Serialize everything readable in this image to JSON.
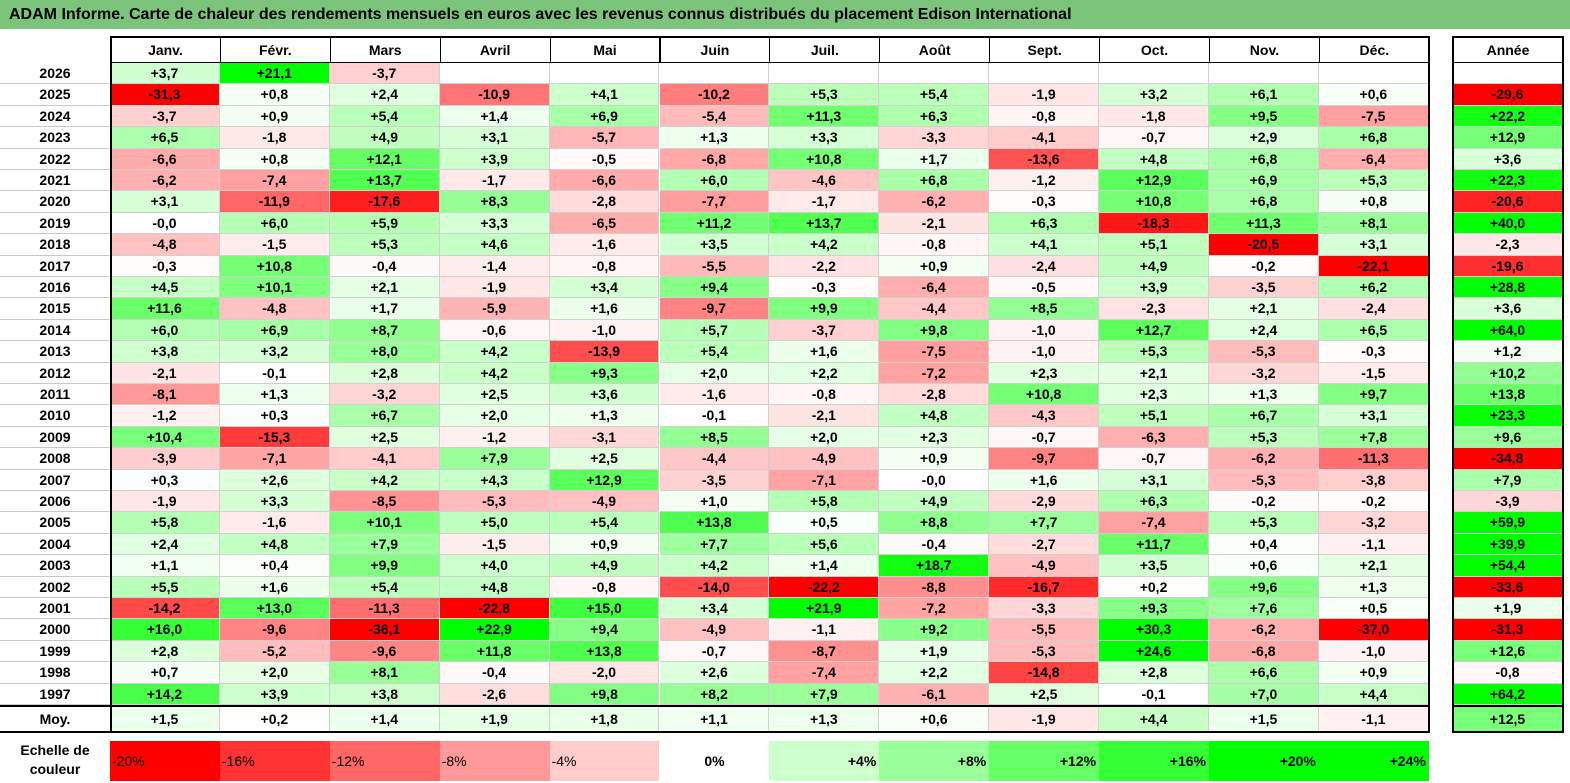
{
  "title": "ADAM Informe. Carte de chaleur des rendements mensuels en euros avec les revenus connus distribués du placement Edison International",
  "chart_data": {
    "type": "heatmap",
    "title": "ADAM Informe. Carte de chaleur des rendements mensuels en euros avec les revenus connus distribués du placement Edison International",
    "months": [
      "Janv.",
      "Févr.",
      "Mars",
      "Avril",
      "Mai",
      "Juin",
      "Juil.",
      "Août",
      "Sept.",
      "Oct.",
      "Nov.",
      "Déc."
    ],
    "year_header": "Année",
    "rows": [
      {
        "year": "2026",
        "values": [
          "+3,7",
          "+21,1",
          "-3,7",
          "",
          "",
          "",
          "",
          "",
          "",
          "",
          "",
          ""
        ],
        "annual": ""
      },
      {
        "year": "2025",
        "values": [
          "-31,3",
          "+0,8",
          "+2,4",
          "-10,9",
          "+4,1",
          "-10,2",
          "+5,3",
          "+5,4",
          "-1,9",
          "+3,2",
          "+6,1",
          "+0,6"
        ],
        "annual": "-29,6"
      },
      {
        "year": "2024",
        "values": [
          "-3,7",
          "+0,9",
          "+5,4",
          "+1,4",
          "+6,9",
          "-5,4",
          "+11,3",
          "+6,3",
          "-0,8",
          "-1,8",
          "+9,5",
          "-7,5"
        ],
        "annual": "+22,2"
      },
      {
        "year": "2023",
        "values": [
          "+6,5",
          "-1,8",
          "+4,9",
          "+3,1",
          "-5,7",
          "+1,3",
          "+3,3",
          "-3,3",
          "-4,1",
          "-0,7",
          "+2,9",
          "+6,8"
        ],
        "annual": "+12,9"
      },
      {
        "year": "2022",
        "values": [
          "-6,6",
          "+0,8",
          "+12,1",
          "+3,9",
          "-0,5",
          "-6,8",
          "+10,8",
          "+1,7",
          "-13,6",
          "+4,8",
          "+6,8",
          "-6,4"
        ],
        "annual": "+3,6"
      },
      {
        "year": "2021",
        "values": [
          "-6,2",
          "-7,4",
          "+13,7",
          "-1,7",
          "-6,6",
          "+6,0",
          "-4,6",
          "+6,8",
          "-1,2",
          "+12,9",
          "+6,9",
          "+5,3"
        ],
        "annual": "+22,3"
      },
      {
        "year": "2020",
        "values": [
          "+3,1",
          "-11,9",
          "-17,6",
          "+8,3",
          "-2,8",
          "-7,7",
          "-1,7",
          "-6,2",
          "-0,3",
          "+10,8",
          "+6,8",
          "+0,8"
        ],
        "annual": "-20,6"
      },
      {
        "year": "2019",
        "values": [
          "-0,0",
          "+6,0",
          "+5,9",
          "+3,3",
          "-6,5",
          "+11,2",
          "+13,7",
          "-2,1",
          "+6,3",
          "-18,3",
          "+11,3",
          "+8,1"
        ],
        "annual": "+40,0"
      },
      {
        "year": "2018",
        "values": [
          "-4,8",
          "-1,5",
          "+5,3",
          "+4,6",
          "-1,6",
          "+3,5",
          "+4,2",
          "-0,8",
          "+4,1",
          "+5,1",
          "-20,5",
          "+3,1"
        ],
        "annual": "-2,3"
      },
      {
        "year": "2017",
        "values": [
          "-0,3",
          "+10,8",
          "-0,4",
          "-1,4",
          "-0,8",
          "-5,5",
          "-2,2",
          "+0,9",
          "-2,4",
          "+4,9",
          "-0,2",
          "-22,1"
        ],
        "annual": "-19,6"
      },
      {
        "year": "2016",
        "values": [
          "+4,5",
          "+10,1",
          "+2,1",
          "-1,9",
          "+3,4",
          "+9,4",
          "-0,3",
          "-6,4",
          "-0,5",
          "+3,9",
          "-3,5",
          "+6,2"
        ],
        "annual": "+28,8"
      },
      {
        "year": "2015",
        "values": [
          "+11,6",
          "-4,8",
          "+1,7",
          "-5,9",
          "+1,6",
          "-9,7",
          "+9,9",
          "-4,4",
          "+8,5",
          "-2,3",
          "+2,1",
          "-2,4"
        ],
        "annual": "+3,6"
      },
      {
        "year": "2014",
        "values": [
          "+6,0",
          "+6,9",
          "+8,7",
          "-0,6",
          "-1,0",
          "+5,7",
          "-3,7",
          "+9,8",
          "-1,0",
          "+12,7",
          "+2,4",
          "+6,5"
        ],
        "annual": "+64,0"
      },
      {
        "year": "2013",
        "values": [
          "+3,8",
          "+3,2",
          "+8,0",
          "+4,2",
          "-13,9",
          "+5,4",
          "+1,6",
          "-7,5",
          "-1,0",
          "+5,3",
          "-5,3",
          "-0,3"
        ],
        "annual": "+1,2"
      },
      {
        "year": "2012",
        "values": [
          "-2,1",
          "-0,1",
          "+2,8",
          "+4,2",
          "+9,3",
          "+2,0",
          "+2,2",
          "-7,2",
          "+2,3",
          "+2,1",
          "-3,2",
          "-1,5"
        ],
        "annual": "+10,2"
      },
      {
        "year": "2011",
        "values": [
          "-8,1",
          "+1,3",
          "-3,2",
          "+2,5",
          "+3,6",
          "-1,6",
          "-0,8",
          "-2,8",
          "+10,8",
          "+2,3",
          "+1,3",
          "+9,7"
        ],
        "annual": "+13,8"
      },
      {
        "year": "2010",
        "values": [
          "-1,2",
          "+0,3",
          "+6,7",
          "+2,0",
          "+1,3",
          "-0,1",
          "-2,1",
          "+4,8",
          "-4,3",
          "+5,1",
          "+6,7",
          "+3,1"
        ],
        "annual": "+23,3"
      },
      {
        "year": "2009",
        "values": [
          "+10,4",
          "-15,3",
          "+2,5",
          "-1,2",
          "-3,1",
          "+8,5",
          "+2,0",
          "+2,3",
          "-0,7",
          "-6,3",
          "+5,3",
          "+7,8"
        ],
        "annual": "+9,6"
      },
      {
        "year": "2008",
        "values": [
          "-3,9",
          "-7,1",
          "-4,1",
          "+7,9",
          "+2,5",
          "-4,4",
          "-4,9",
          "+0,9",
          "-9,7",
          "-0,7",
          "-6,2",
          "-11,3"
        ],
        "annual": "-34,8"
      },
      {
        "year": "2007",
        "values": [
          "+0,3",
          "+2,6",
          "+4,2",
          "+4,3",
          "+12,9",
          "-3,5",
          "-7,1",
          "-0,0",
          "+1,6",
          "+3,1",
          "-5,3",
          "-3,8"
        ],
        "annual": "+7,9"
      },
      {
        "year": "2006",
        "values": [
          "-1,9",
          "+3,3",
          "-8,5",
          "-5,3",
          "-4,9",
          "+1,0",
          "+5,8",
          "+4,9",
          "-2,9",
          "+6,3",
          "-0,2",
          "-0,2"
        ],
        "annual": "-3,9"
      },
      {
        "year": "2005",
        "values": [
          "+5,8",
          "-1,6",
          "+10,1",
          "+5,0",
          "+5,4",
          "+13,8",
          "+0,5",
          "+8,8",
          "+7,7",
          "-7,4",
          "+5,3",
          "-3,2"
        ],
        "annual": "+59,9"
      },
      {
        "year": "2004",
        "values": [
          "+2,4",
          "+4,8",
          "+7,9",
          "-1,5",
          "+0,9",
          "+7,7",
          "+5,6",
          "-0,4",
          "-2,7",
          "+11,7",
          "+0,4",
          "-1,1"
        ],
        "annual": "+39,9"
      },
      {
        "year": "2003",
        "values": [
          "+1,1",
          "+0,4",
          "+9,9",
          "+4,0",
          "+4,9",
          "+4,2",
          "+1,4",
          "+18,7",
          "-4,9",
          "+3,5",
          "+0,6",
          "+2,1"
        ],
        "annual": "+54,4"
      },
      {
        "year": "2002",
        "values": [
          "+5,5",
          "+1,6",
          "+5,4",
          "+4,8",
          "-0,8",
          "-14,0",
          "-22,2",
          "-8,8",
          "-16,7",
          "+0,2",
          "+9,6",
          "+1,3"
        ],
        "annual": "-33,6"
      },
      {
        "year": "2001",
        "values": [
          "-14,2",
          "+13,0",
          "-11,3",
          "-22,8",
          "+15,0",
          "+3,4",
          "+21,9",
          "-7,2",
          "-3,3",
          "+9,3",
          "+7,6",
          "+0,5"
        ],
        "annual": "+1,9"
      },
      {
        "year": "2000",
        "values": [
          "+16,0",
          "-9,6",
          "-36,1",
          "+22,9",
          "+9,4",
          "-4,9",
          "-1,1",
          "+9,2",
          "-5,5",
          "+30,3",
          "-6,2",
          "-37,0"
        ],
        "annual": "-31,3"
      },
      {
        "year": "1999",
        "values": [
          "+2,8",
          "-5,2",
          "-9,6",
          "+11,8",
          "+13,8",
          "-0,7",
          "-8,7",
          "+1,9",
          "-5,3",
          "+24,6",
          "-6,8",
          "-1,0"
        ],
        "annual": "+12,6"
      },
      {
        "year": "1998",
        "values": [
          "+0,7",
          "+2,0",
          "+8,1",
          "-0,4",
          "-2,0",
          "+2,6",
          "-7,4",
          "+2,2",
          "-14,8",
          "+2,8",
          "+6,6",
          "+0,9"
        ],
        "annual": "-0,8"
      },
      {
        "year": "1997",
        "values": [
          "+14,2",
          "+3,9",
          "+3,8",
          "-2,6",
          "+9,8",
          "+8,2",
          "+7,9",
          "-6,1",
          "+2,5",
          "-0,1",
          "+7,0",
          "+4,4"
        ],
        "annual": "+64,2"
      }
    ],
    "average": {
      "label": "Moy.",
      "values": [
        "+1,5",
        "+0,2",
        "+1,4",
        "+1,9",
        "+1,8",
        "+1,1",
        "+1,3",
        "+0,6",
        "-1,9",
        "+4,4",
        "+1,5",
        "-1,1"
      ],
      "annual": "+12,5"
    },
    "scale": {
      "label": "Echelle de couleur",
      "steps": [
        "-20%",
        "-16%",
        "-12%",
        "-8%",
        "-4%",
        "0%",
        "+4%",
        "+8%",
        "+12%",
        "+16%",
        "+20%",
        "+24%"
      ],
      "step_values": [
        -20,
        -16,
        -12,
        -8,
        -4,
        0,
        4,
        8,
        12,
        16,
        20,
        24
      ]
    },
    "colors": {
      "negative": "#ff0000",
      "zero": "#ffffff",
      "positive": "#00ff00",
      "title_bg": "#7cc47c"
    }
  }
}
